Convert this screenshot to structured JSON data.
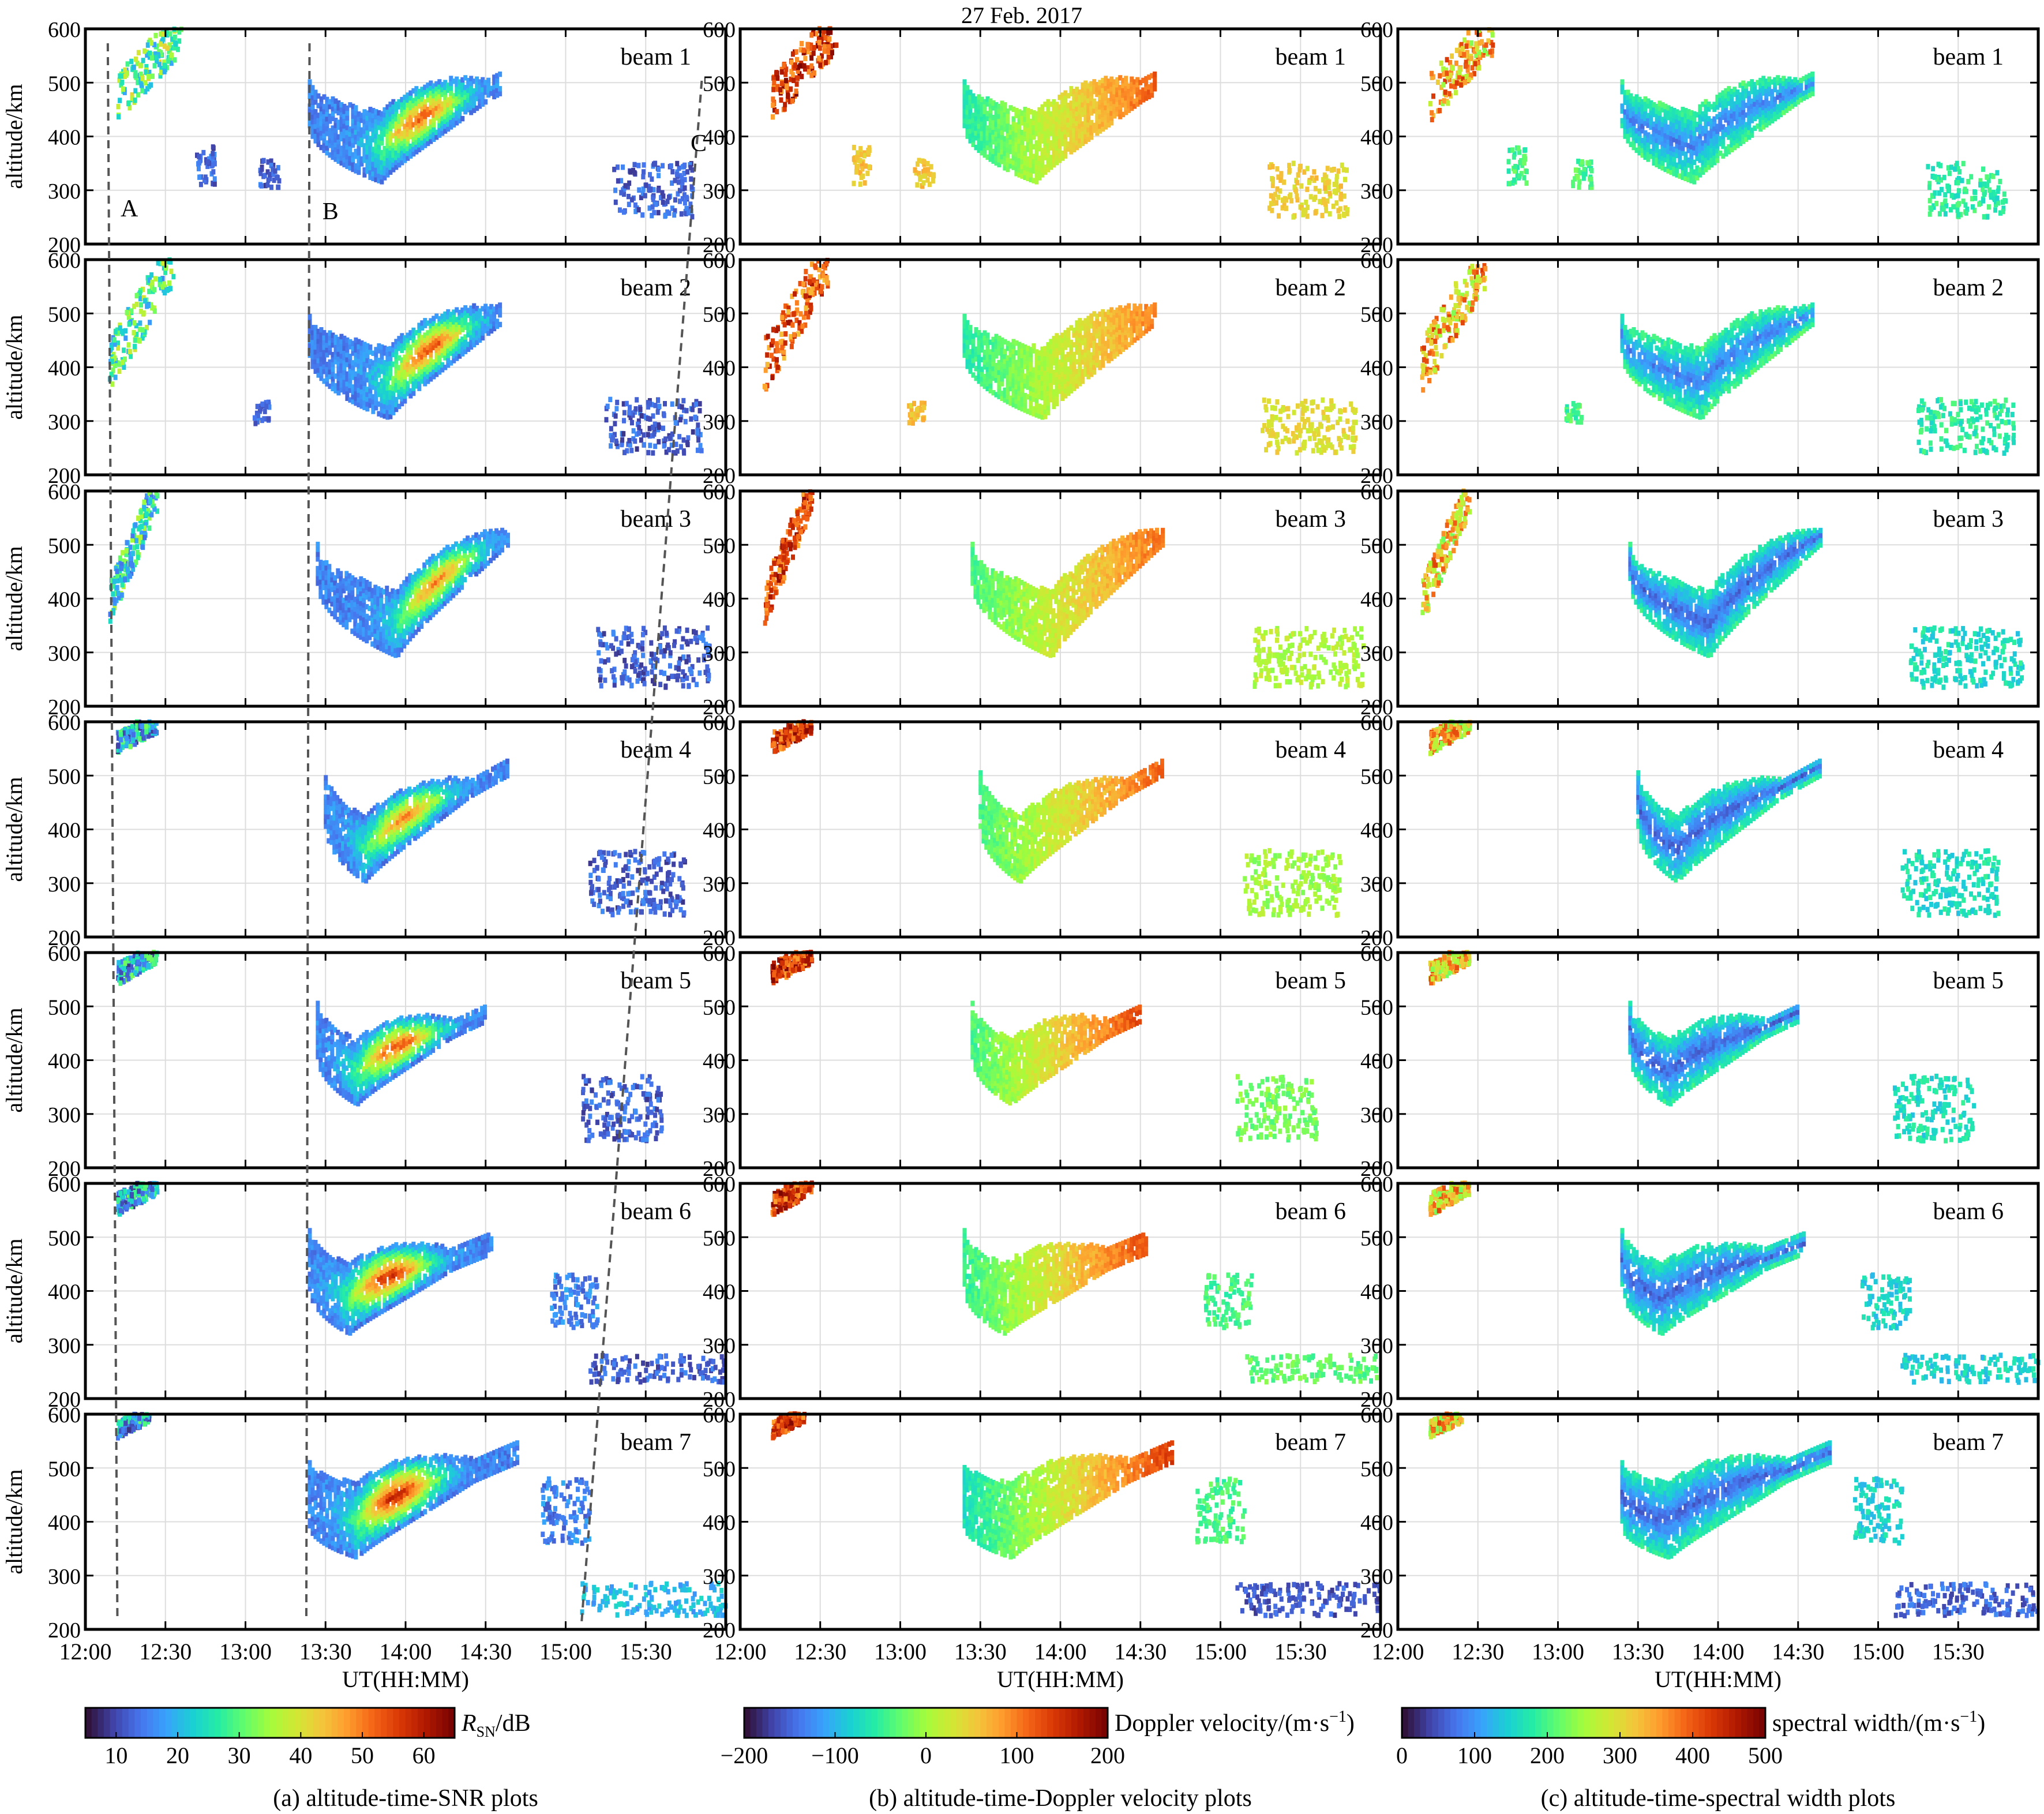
{
  "figure": {
    "date_title": "27 Feb. 2017"
  },
  "axes": {
    "ylabel": "altitude/km",
    "xlabel": "UT(HH:MM)",
    "y_ticks": [
      "200",
      "300",
      "400",
      "500",
      "600"
    ],
    "x_ticks": [
      "12:00",
      "12:30",
      "13:00",
      "13:30",
      "14:00",
      "14:30",
      "15:00",
      "15:30"
    ],
    "ylim": [
      200,
      600
    ],
    "xlim_hours": [
      12.0,
      16.0
    ],
    "grid": true
  },
  "beams": [
    "beam 1",
    "beam 2",
    "beam 3",
    "beam 4",
    "beam 5",
    "beam 6",
    "beam 7"
  ],
  "panels": [
    {
      "key": "snr",
      "caption": "(a) altitude-time-SNR plots",
      "cbar_label_main": "R",
      "cbar_label_sub": "SN",
      "cbar_label_unit": "/dB",
      "cbar_ticks": [
        "10",
        "20",
        "30",
        "40",
        "50",
        "60"
      ],
      "cbar_range": [
        5,
        65
      ]
    },
    {
      "key": "doppler",
      "caption": "(b) altitude-time-Doppler velocity plots",
      "cbar_label_main": "Doppler velocity/(m·s",
      "cbar_label_sup": "−1",
      "cbar_label_unit": ")",
      "cbar_ticks": [
        "−200",
        "−100",
        "0",
        "100",
        "200"
      ],
      "cbar_range": [
        -200,
        200
      ]
    },
    {
      "key": "width",
      "caption": "(c) altitude-time-spectral width plots",
      "cbar_label_main": "spectral width/(m·s",
      "cbar_label_sup": "−1",
      "cbar_label_unit": ")",
      "cbar_ticks": [
        "0",
        "100",
        "200",
        "300",
        "400",
        "500"
      ],
      "cbar_range": [
        0,
        500
      ]
    }
  ],
  "markers": {
    "labels": [
      "A",
      "B",
      "C"
    ],
    "A_time_hours": [
      12.14,
      12.2
    ],
    "B_time_hours": [
      13.4,
      13.38
    ],
    "C_time_hours": [
      15.85,
      15.1
    ]
  },
  "colormap": [
    "#30123b",
    "#4145ab",
    "#4675ed",
    "#39a2fc",
    "#1bcfd4",
    "#24eca6",
    "#61fc6c",
    "#a4fc3b",
    "#d1e834",
    "#f3c63a",
    "#fe9b2d",
    "#f36315",
    "#d93806",
    "#b11901",
    "#7a0402"
  ],
  "chart_data": {
    "type": "heatmap",
    "title": "27 Feb. 2017",
    "xlabel": "UT(HH:MM)",
    "ylabel": "altitude/km",
    "ylim": [
      200,
      600
    ],
    "xlim": [
      "12:00",
      "16:00"
    ],
    "series": [
      {
        "name": "beam 1",
        "features": [
          {
            "kind": "streak",
            "t0": 12.2,
            "a0": 470,
            "t1": 12.6,
            "a1": 600,
            "width_km": 90,
            "snr": 30,
            "vel": 140,
            "sw": 330
          },
          {
            "kind": "arc",
            "t_start": 13.4,
            "t_end": 14.6,
            "a_left": 440,
            "a_right": 490,
            "a_min": 345,
            "t_min": 13.85,
            "thickness_km": 70,
            "snr_core": 55,
            "snr_edge": 15,
            "vel_start": -60,
            "vel_end": 120,
            "sw": 80
          },
          {
            "kind": "blob",
            "t": 15.55,
            "a": 300,
            "dt": 0.25,
            "da": 50,
            "snr": 12,
            "vel": 50,
            "sw": 180
          },
          {
            "kind": "blob",
            "t": 12.75,
            "a": 345,
            "dt": 0.06,
            "da": 35,
            "snr": 12,
            "vel": 60,
            "sw": 200
          },
          {
            "kind": "blob",
            "t": 13.15,
            "a": 330,
            "dt": 0.06,
            "da": 25,
            "snr": 12,
            "vel": 60,
            "sw": 200
          }
        ]
      },
      {
        "name": "beam 2",
        "features": [
          {
            "kind": "streak",
            "t0": 12.15,
            "a0": 400,
            "t1": 12.55,
            "a1": 600,
            "width_km": 100,
            "snr": 28,
            "vel": 120,
            "sw": 330
          },
          {
            "kind": "arc",
            "t_start": 13.4,
            "t_end": 14.6,
            "a_left": 440,
            "a_right": 490,
            "a_min": 335,
            "t_min": 13.9,
            "thickness_km": 70,
            "snr_core": 55,
            "snr_edge": 15,
            "vel_start": -60,
            "vel_end": 100,
            "sw": 80
          },
          {
            "kind": "blob",
            "t": 15.55,
            "a": 290,
            "dt": 0.3,
            "da": 50,
            "snr": 12,
            "vel": 40,
            "sw": 180
          },
          {
            "kind": "blob",
            "t": 13.1,
            "a": 315,
            "dt": 0.05,
            "da": 20,
            "snr": 12,
            "vel": 60,
            "sw": 200
          }
        ]
      },
      {
        "name": "beam 3",
        "features": [
          {
            "kind": "streak",
            "t0": 12.15,
            "a0": 390,
            "t1": 12.45,
            "a1": 600,
            "width_km": 80,
            "snr": 25,
            "vel": 130,
            "sw": 320
          },
          {
            "kind": "arc",
            "t_start": 13.45,
            "t_end": 14.65,
            "a_left": 445,
            "a_right": 510,
            "a_min": 320,
            "t_min": 13.95,
            "thickness_km": 65,
            "snr_core": 50,
            "snr_edge": 15,
            "vel_start": -40,
            "vel_end": 110,
            "sw": 60
          },
          {
            "kind": "blob",
            "t": 15.55,
            "a": 290,
            "dt": 0.35,
            "da": 55,
            "snr": 12,
            "vel": 10,
            "sw": 160
          }
        ]
      },
      {
        "name": "beam 4",
        "features": [
          {
            "kind": "streak",
            "t0": 12.2,
            "a0": 560,
            "t1": 12.45,
            "a1": 600,
            "width_km": 40,
            "snr": 20,
            "vel": 140,
            "sw": 320
          },
          {
            "kind": "arc",
            "t_start": 13.5,
            "t_end": 14.65,
            "a_left": 430,
            "a_right": 510,
            "a_min": 330,
            "t_min": 13.75,
            "thickness_km": 65,
            "snr_core": 50,
            "snr_edge": 15,
            "vel_start": -40,
            "vel_end": 120,
            "sw": 60
          },
          {
            "kind": "blob",
            "t": 15.45,
            "a": 300,
            "dt": 0.3,
            "da": 60,
            "snr": 12,
            "vel": 0,
            "sw": 160
          }
        ]
      },
      {
        "name": "beam 5",
        "features": [
          {
            "kind": "streak",
            "t0": 12.2,
            "a0": 560,
            "t1": 12.45,
            "a1": 600,
            "width_km": 40,
            "snr": 20,
            "vel": 140,
            "sw": 320
          },
          {
            "kind": "arc",
            "t_start": 13.45,
            "t_end": 14.5,
            "a_left": 430,
            "a_right": 480,
            "a_min": 345,
            "t_min": 13.7,
            "thickness_km": 65,
            "snr_core": 55,
            "snr_edge": 15,
            "vel_start": -40,
            "vel_end": 130,
            "sw": 60
          },
          {
            "kind": "blob",
            "t": 15.35,
            "a": 310,
            "dt": 0.25,
            "da": 60,
            "snr": 12,
            "vel": -20,
            "sw": 160
          }
        ]
      },
      {
        "name": "beam 6",
        "features": [
          {
            "kind": "streak",
            "t0": 12.2,
            "a0": 560,
            "t1": 12.45,
            "a1": 600,
            "width_km": 40,
            "snr": 20,
            "vel": 140,
            "sw": 320
          },
          {
            "kind": "arc",
            "t_start": 13.4,
            "t_end": 14.55,
            "a_left": 430,
            "a_right": 480,
            "a_min": 350,
            "t_min": 13.65,
            "thickness_km": 70,
            "snr_core": 58,
            "snr_edge": 15,
            "vel_start": -50,
            "vel_end": 130,
            "sw": 60
          },
          {
            "kind": "blob",
            "t": 15.05,
            "a": 380,
            "dt": 0.15,
            "da": 50,
            "snr": 15,
            "vel": -40,
            "sw": 150
          },
          {
            "kind": "blob",
            "t": 15.6,
            "a": 255,
            "dt": 0.45,
            "da": 25,
            "snr": 12,
            "vel": -30,
            "sw": 150
          }
        ]
      },
      {
        "name": "beam 7",
        "features": [
          {
            "kind": "streak",
            "t0": 12.2,
            "a0": 570,
            "t1": 12.4,
            "a1": 600,
            "width_km": 30,
            "snr": 20,
            "vel": 140,
            "sw": 320
          },
          {
            "kind": "arc",
            "t_start": 13.4,
            "t_end": 14.7,
            "a_left": 420,
            "a_right": 520,
            "a_min": 365,
            "t_min": 13.7,
            "thickness_km": 75,
            "snr_core": 60,
            "snr_edge": 15,
            "vel_start": -70,
            "vel_end": 140,
            "sw": 60
          },
          {
            "kind": "blob",
            "t": 15.0,
            "a": 420,
            "dt": 0.15,
            "da": 60,
            "snr": 15,
            "vel": -40,
            "sw": 150
          },
          {
            "kind": "blob",
            "t": 15.55,
            "a": 255,
            "dt": 0.45,
            "da": 30,
            "snr": 20,
            "vel": -160,
            "sw": 60
          }
        ]
      }
    ]
  }
}
